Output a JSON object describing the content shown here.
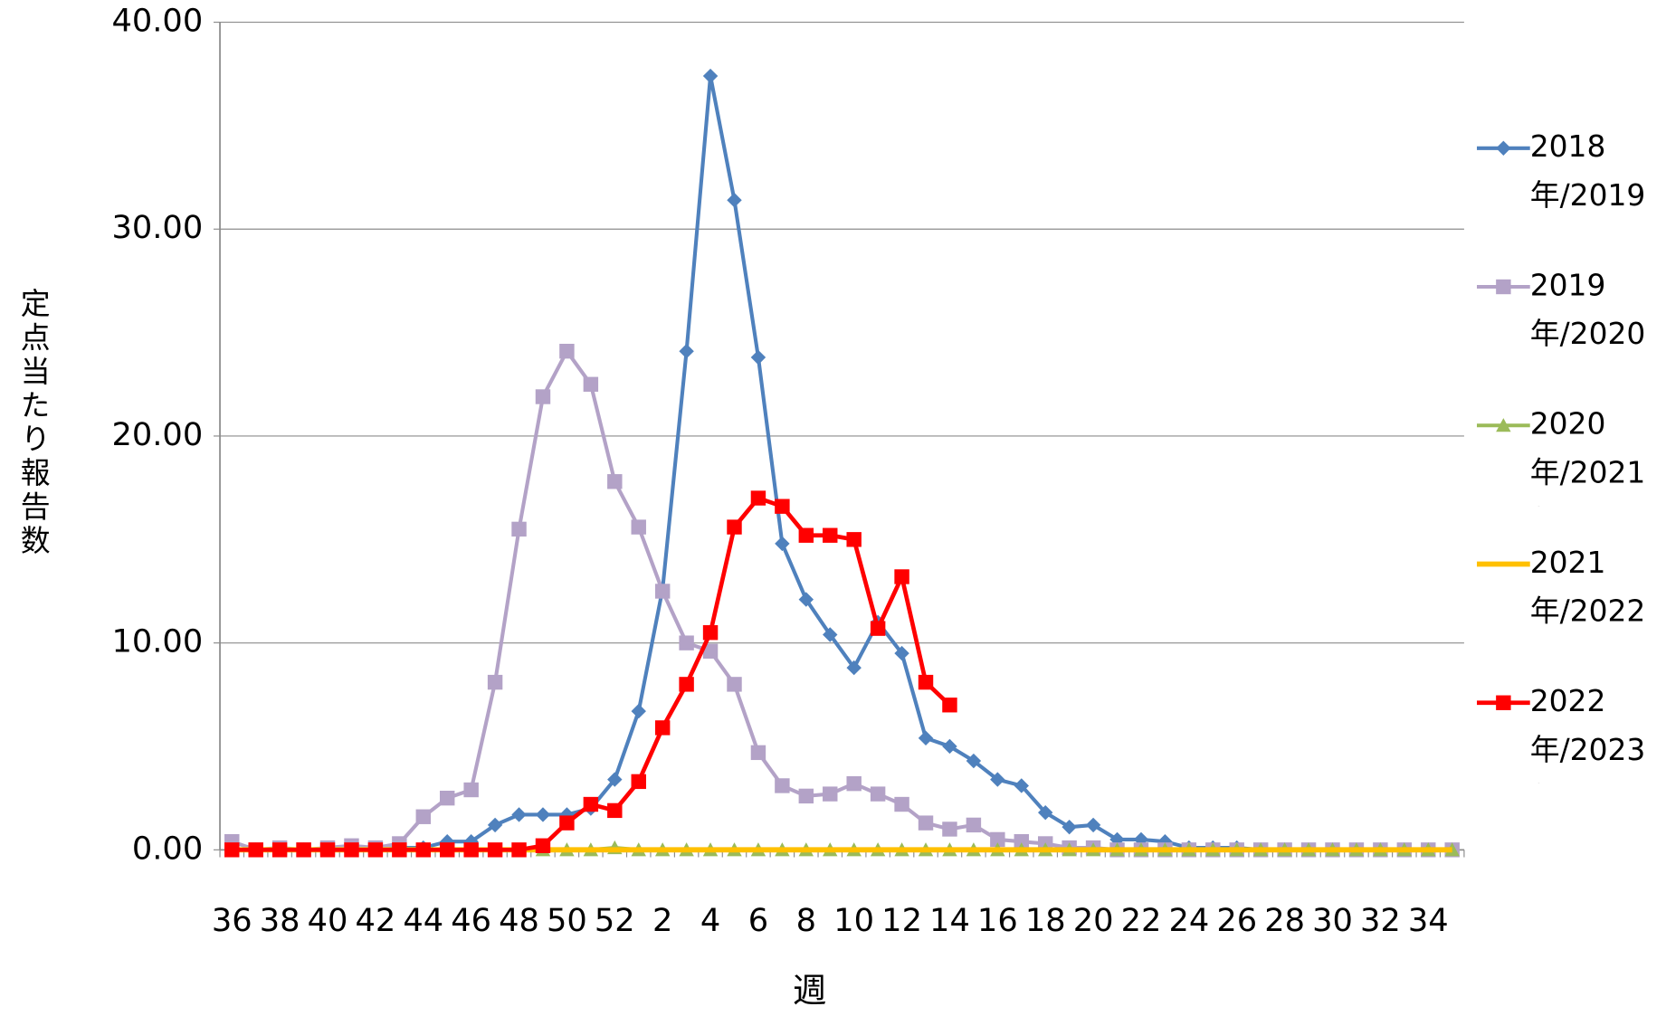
{
  "chart_data": {
    "type": "line",
    "x_label": "週",
    "y_label": "定点当たり報告数",
    "categories": [
      "36",
      null,
      "38",
      null,
      "40",
      null,
      "42",
      null,
      "44",
      null,
      "46",
      null,
      "48",
      null,
      "50",
      null,
      "52",
      null,
      "2",
      null,
      "4",
      null,
      "6",
      null,
      "8",
      null,
      "10",
      null,
      "12",
      null,
      "14",
      null,
      "16",
      null,
      "18",
      null,
      "20",
      null,
      "22",
      null,
      "24",
      null,
      "26",
      null,
      "28",
      null,
      "30",
      null,
      "32",
      null,
      "34",
      null
    ],
    "ylim": [
      0,
      40
    ],
    "yticks": [
      {
        "value": 0,
        "label": "0.00"
      },
      {
        "value": 10,
        "label": "10.00"
      },
      {
        "value": 20,
        "label": "20.00"
      },
      {
        "value": 30,
        "label": "30.00"
      },
      {
        "value": 40,
        "label": "40.00"
      }
    ],
    "grid": true,
    "legend": "right",
    "series": [
      {
        "name": "2018年/2019年",
        "color": "#4f81bd",
        "marker": "diamond",
        "values": [
          0,
          0,
          0,
          0,
          0,
          0,
          0.1,
          0.1,
          0.1,
          0.4,
          0.4,
          1.2,
          1.7,
          1.7,
          1.7,
          2.0,
          3.4,
          6.7,
          12.6,
          24.1,
          37.4,
          31.4,
          23.8,
          14.8,
          12.1,
          10.4,
          8.8,
          11.0,
          9.5,
          5.4,
          5.0,
          4.3,
          3.4,
          3.1,
          1.8,
          1.1,
          1.2,
          0.5,
          0.5,
          0.4,
          0.1,
          0.1,
          0.1,
          0,
          0,
          0,
          0,
          0,
          0,
          0,
          0,
          0
        ]
      },
      {
        "name": "2019年/2020年",
        "color": "#b3a2c7",
        "marker": "square",
        "values": [
          0.4,
          0,
          0.1,
          0,
          0.1,
          0.2,
          0.1,
          0.3,
          1.6,
          2.5,
          2.9,
          8.1,
          15.5,
          21.9,
          24.1,
          22.5,
          17.8,
          15.6,
          12.5,
          10.0,
          9.6,
          8.0,
          4.7,
          3.1,
          2.6,
          2.7,
          3.2,
          2.7,
          2.2,
          1.3,
          1.0,
          1.2,
          0.5,
          0.4,
          0.3,
          0.1,
          0.1,
          0,
          0,
          0,
          0,
          0,
          0,
          0,
          0,
          0,
          0,
          0,
          0,
          0,
          0,
          0
        ]
      },
      {
        "name": "2020年/2021年",
        "color": "#9bbb59",
        "marker": "triangle",
        "values": [
          null,
          null,
          null,
          null,
          null,
          null,
          null,
          null,
          null,
          null,
          null,
          null,
          null,
          0,
          0,
          0,
          0.1,
          0,
          0,
          0,
          0,
          0,
          0,
          0,
          0,
          0,
          0,
          0,
          0,
          0,
          0,
          0,
          0,
          0,
          0,
          0,
          0,
          0,
          0,
          0,
          0,
          0,
          0,
          0,
          0,
          0,
          0,
          0,
          0,
          0,
          0,
          0
        ]
      },
      {
        "name": "2021年/2022年",
        "color": "#ffc000",
        "marker": "none",
        "values": [
          0,
          0,
          0,
          0,
          0,
          0,
          0,
          0,
          0,
          0,
          0,
          0,
          0,
          0,
          0,
          0,
          0,
          0,
          0,
          0,
          0,
          0,
          0,
          0,
          0,
          0,
          0,
          0,
          0,
          0,
          0,
          0,
          0,
          0,
          0,
          0,
          0,
          0,
          0,
          0,
          0,
          0,
          0,
          0,
          0,
          0,
          0,
          0,
          0,
          0,
          0,
          0
        ]
      },
      {
        "name": "2022年/2023年",
        "color": "#ff0000",
        "marker": "square",
        "values": [
          0,
          0,
          0,
          0,
          0,
          0,
          0,
          0,
          0,
          0,
          0,
          0,
          0,
          0.2,
          1.3,
          2.2,
          1.9,
          3.3,
          5.9,
          8.0,
          10.5,
          15.6,
          17.0,
          16.6,
          15.2,
          15.2,
          15.0,
          10.7,
          13.2,
          8.1,
          7.0,
          null,
          null,
          null,
          null,
          null,
          null,
          null,
          null,
          null,
          null,
          null,
          null,
          null,
          null,
          null,
          null,
          null,
          null,
          null,
          null,
          null
        ]
      }
    ]
  }
}
